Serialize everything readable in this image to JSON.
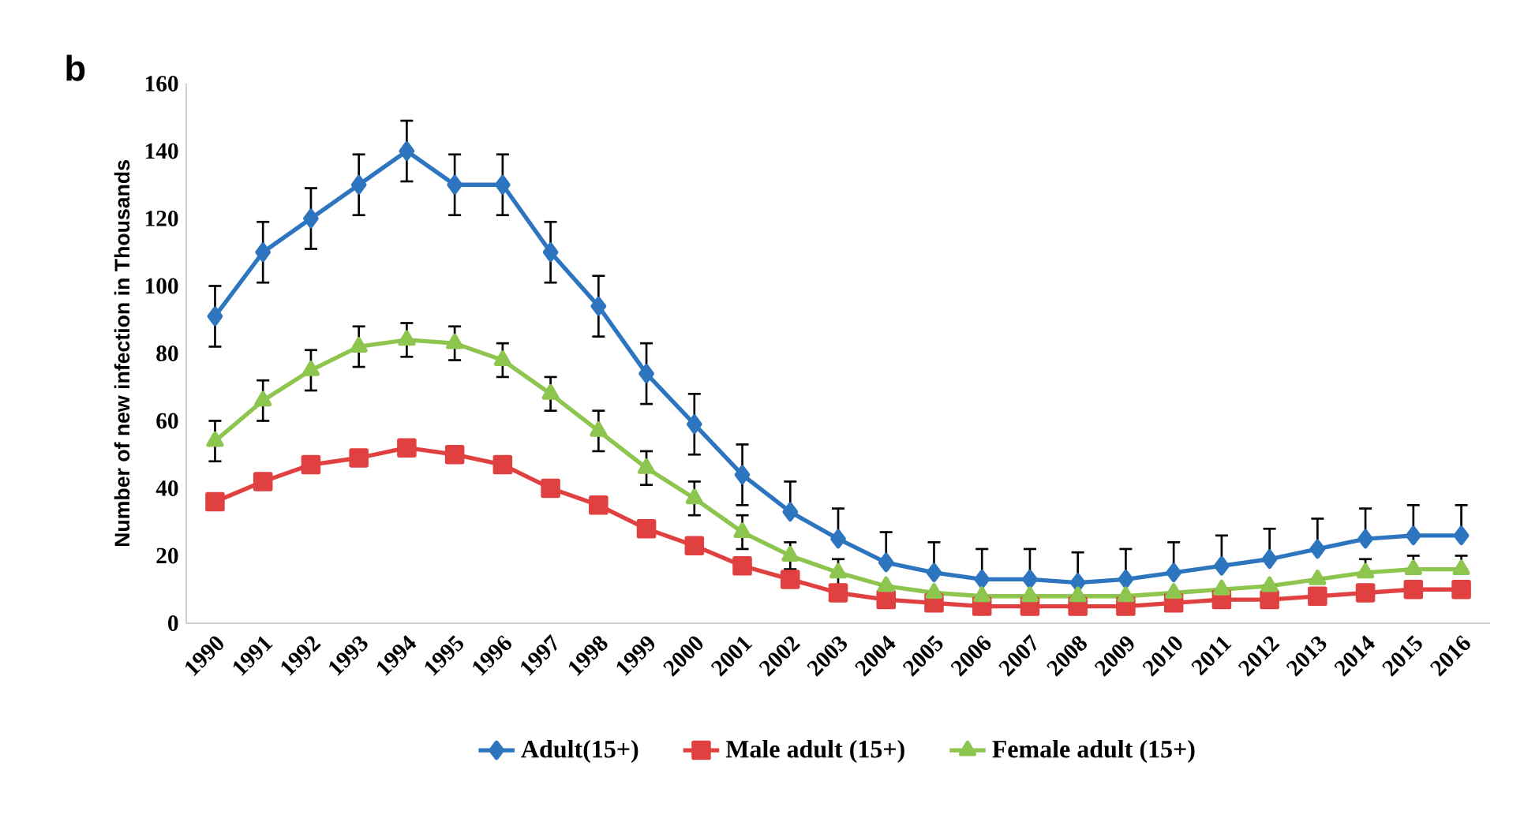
{
  "chart_data": {
    "type": "line",
    "title": "b",
    "ylabel": "Number of new infection in Thousands",
    "categories": [
      "1990",
      "1991",
      "1992",
      "1993",
      "1994",
      "1995",
      "1996",
      "1997",
      "1998",
      "1999",
      "2000",
      "2001",
      "2002",
      "2003",
      "2004",
      "2005",
      "2006",
      "2007",
      "2008",
      "2009",
      "2010",
      "2011",
      "2012",
      "2013",
      "2014",
      "2015",
      "2016"
    ],
    "ylim": [
      0,
      160
    ],
    "yticks": [
      0,
      20,
      40,
      60,
      80,
      100,
      120,
      140,
      160
    ],
    "legend": "bottom",
    "series": [
      {
        "name": "Adult(15+)",
        "color": "#2e75c0",
        "marker": "diamond",
        "values": [
          91,
          110,
          120,
          130,
          140,
          130,
          130,
          110,
          94,
          74,
          59,
          44,
          33,
          25,
          18,
          15,
          13,
          13,
          12,
          13,
          15,
          17,
          19,
          22,
          25,
          26,
          26
        ],
        "errors": [
          9,
          9,
          9,
          9,
          9,
          9,
          9,
          9,
          9,
          9,
          9,
          9,
          [
            33,
            42
          ],
          [
            25,
            34
          ],
          [
            18,
            27
          ],
          [
            15,
            24
          ],
          [
            13,
            22
          ],
          [
            13,
            22
          ],
          [
            12,
            21
          ],
          [
            13,
            22
          ],
          [
            15,
            24
          ],
          [
            17,
            26
          ],
          [
            19,
            28
          ],
          [
            22,
            31
          ],
          [
            25,
            34
          ],
          [
            26,
            35
          ],
          [
            26,
            35
          ]
        ]
      },
      {
        "name": "Male adult (15+)",
        "color": "#e0403f",
        "marker": "square",
        "values": [
          36,
          42,
          47,
          49,
          52,
          50,
          47,
          40,
          35,
          28,
          23,
          17,
          13,
          9,
          7,
          6,
          5,
          5,
          5,
          5,
          6,
          7,
          7,
          8,
          9,
          10,
          10
        ]
      },
      {
        "name": "Female adult (15+)",
        "color": "#8dc54f",
        "marker": "triangle",
        "values": [
          54,
          66,
          75,
          82,
          84,
          83,
          78,
          68,
          57,
          46,
          37,
          27,
          20,
          15,
          11,
          9,
          8,
          8,
          8,
          8,
          9,
          10,
          11,
          13,
          15,
          16,
          16
        ],
        "errors": [
          6,
          6,
          6,
          6,
          5,
          5,
          5,
          5,
          6,
          5,
          5,
          5,
          4,
          4,
          null,
          null,
          null,
          null,
          null,
          null,
          null,
          null,
          null,
          null,
          [
            15,
            19
          ],
          [
            16,
            20
          ],
          [
            16,
            20
          ]
        ]
      }
    ]
  }
}
